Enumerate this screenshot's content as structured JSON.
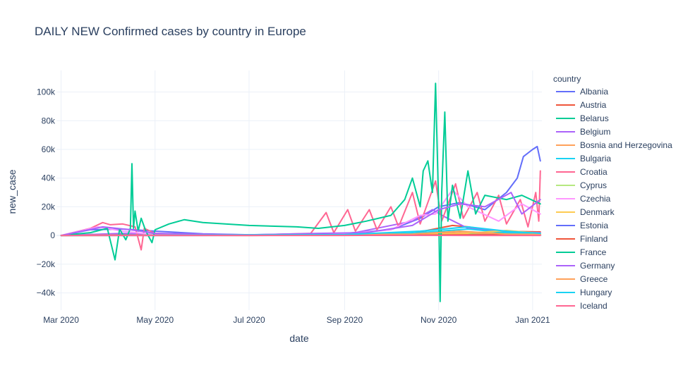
{
  "chart_data": {
    "type": "line",
    "title": "DAILY NEW Confirmed cases by country in Europe",
    "xlabel": "date",
    "ylabel": "new_case",
    "legend_title": "country",
    "legend_position": "right",
    "grid": true,
    "xlim": [
      "2020-02-27",
      "2021-01-07"
    ],
    "ylim": [
      -52000,
      115000
    ],
    "x_ticks": [
      {
        "date": "2020-03-01",
        "label": "Mar 2020"
      },
      {
        "date": "2020-05-01",
        "label": "May 2020"
      },
      {
        "date": "2020-07-01",
        "label": "Jul 2020"
      },
      {
        "date": "2020-09-01",
        "label": "Sep 2020"
      },
      {
        "date": "2020-11-01",
        "label": "Nov 2020"
      },
      {
        "date": "2021-01-01",
        "label": "Jan 2021"
      }
    ],
    "y_ticks": [
      {
        "value": -40000,
        "label": "−40k"
      },
      {
        "value": -20000,
        "label": "−20k"
      },
      {
        "value": 0,
        "label": "0"
      },
      {
        "value": 20000,
        "label": "20k"
      },
      {
        "value": 40000,
        "label": "40k"
      },
      {
        "value": 60000,
        "label": "60k"
      },
      {
        "value": 80000,
        "label": "80k"
      },
      {
        "value": 100000,
        "label": "100k"
      }
    ],
    "series": [
      {
        "name": "Albania",
        "color": "#636efa",
        "points": [
          [
            "2020-03-01",
            0
          ],
          [
            "2020-03-20",
            4000
          ],
          [
            "2020-04-10",
            4500
          ],
          [
            "2020-05-01",
            3000
          ],
          [
            "2020-06-01",
            1200
          ],
          [
            "2020-07-01",
            500
          ],
          [
            "2020-08-01",
            1000
          ],
          [
            "2020-09-01",
            1500
          ],
          [
            "2020-10-01",
            4000
          ],
          [
            "2020-10-20",
            12000
          ],
          [
            "2020-11-01",
            20000
          ],
          [
            "2020-11-15",
            23000
          ],
          [
            "2020-12-01",
            18000
          ],
          [
            "2020-12-15",
            30000
          ],
          [
            "2020-12-22",
            40000
          ],
          [
            "2020-12-26",
            55000
          ],
          [
            "2021-01-01",
            60000
          ],
          [
            "2021-01-04",
            62000
          ],
          [
            "2021-01-06",
            52000
          ]
        ]
      },
      {
        "name": "Austria",
        "color": "#ef553b",
        "points": [
          [
            "2020-03-01",
            0
          ],
          [
            "2020-03-25",
            800
          ],
          [
            "2020-05-01",
            100
          ],
          [
            "2020-07-01",
            100
          ],
          [
            "2020-09-01",
            400
          ],
          [
            "2020-10-15",
            1500
          ],
          [
            "2020-11-10",
            7000
          ],
          [
            "2020-11-20",
            6000
          ],
          [
            "2020-12-10",
            3000
          ],
          [
            "2021-01-06",
            2500
          ]
        ]
      },
      {
        "name": "Belarus",
        "color": "#00cc96",
        "points": [
          [
            "2020-03-01",
            0
          ],
          [
            "2020-04-01",
            1000
          ],
          [
            "2020-05-01",
            900
          ],
          [
            "2020-06-01",
            800
          ],
          [
            "2020-07-01",
            300
          ],
          [
            "2020-09-01",
            300
          ],
          [
            "2020-10-15",
            900
          ],
          [
            "2020-11-15",
            1500
          ],
          [
            "2020-12-15",
            1800
          ],
          [
            "2021-01-06",
            1700
          ]
        ]
      },
      {
        "name": "Belgium",
        "color": "#ab63fa",
        "points": [
          [
            "2020-03-01",
            0
          ],
          [
            "2020-04-10",
            1500
          ],
          [
            "2020-05-01",
            600
          ],
          [
            "2020-07-01",
            200
          ],
          [
            "2020-09-01",
            500
          ],
          [
            "2020-10-15",
            10000
          ],
          [
            "2020-10-28",
            18000
          ],
          [
            "2020-11-05",
            13000
          ],
          [
            "2020-11-20",
            5000
          ],
          [
            "2020-12-15",
            2500
          ],
          [
            "2021-01-06",
            2000
          ]
        ]
      },
      {
        "name": "Bosnia and Herzegovina",
        "color": "#ffa15a",
        "points": [
          [
            "2020-03-01",
            0
          ],
          [
            "2020-05-01",
            50
          ],
          [
            "2020-07-01",
            200
          ],
          [
            "2020-09-01",
            300
          ],
          [
            "2020-10-20",
            1000
          ],
          [
            "2020-11-15",
            2000
          ],
          [
            "2020-12-15",
            1000
          ],
          [
            "2021-01-06",
            600
          ]
        ]
      },
      {
        "name": "Bulgaria",
        "color": "#19d3f3",
        "points": [
          [
            "2020-03-01",
            0
          ],
          [
            "2020-05-01",
            100
          ],
          [
            "2020-07-01",
            150
          ],
          [
            "2020-09-01",
            200
          ],
          [
            "2020-10-20",
            2000
          ],
          [
            "2020-11-20",
            4500
          ],
          [
            "2020-12-15",
            2000
          ],
          [
            "2021-01-06",
            800
          ]
        ]
      },
      {
        "name": "Croatia",
        "color": "#ff6692",
        "points": [
          [
            "2020-03-01",
            0
          ],
          [
            "2020-03-20",
            5000
          ],
          [
            "2020-03-28",
            9000
          ],
          [
            "2020-04-02",
            7500
          ],
          [
            "2020-04-10",
            8000
          ],
          [
            "2020-04-18",
            6000
          ],
          [
            "2020-04-22",
            -10000
          ],
          [
            "2020-04-24",
            5000
          ],
          [
            "2020-05-01",
            1500
          ],
          [
            "2020-06-01",
            500
          ],
          [
            "2020-07-01",
            300
          ],
          [
            "2020-08-10",
            1500
          ],
          [
            "2020-08-20",
            16000
          ],
          [
            "2020-08-25",
            2000
          ],
          [
            "2020-09-03",
            18000
          ],
          [
            "2020-09-08",
            3000
          ],
          [
            "2020-09-17",
            18000
          ],
          [
            "2020-09-22",
            4000
          ],
          [
            "2020-10-01",
            20000
          ],
          [
            "2020-10-06",
            6000
          ],
          [
            "2020-10-15",
            30000
          ],
          [
            "2020-10-20",
            8000
          ],
          [
            "2020-10-30",
            38000
          ],
          [
            "2020-11-03",
            10000
          ],
          [
            "2020-11-12",
            36000
          ],
          [
            "2020-11-17",
            12000
          ],
          [
            "2020-11-26",
            30000
          ],
          [
            "2020-12-01",
            10000
          ],
          [
            "2020-12-10",
            28000
          ],
          [
            "2020-12-15",
            8000
          ],
          [
            "2020-12-24",
            25000
          ],
          [
            "2020-12-29",
            6000
          ],
          [
            "2021-01-03",
            30000
          ],
          [
            "2021-01-05",
            10000
          ],
          [
            "2021-01-06",
            45000
          ]
        ]
      },
      {
        "name": "Cyprus",
        "color": "#b6e880",
        "points": [
          [
            "2020-03-01",
            0
          ],
          [
            "2020-05-01",
            20
          ],
          [
            "2020-09-01",
            50
          ],
          [
            "2020-11-01",
            300
          ],
          [
            "2020-12-15",
            700
          ],
          [
            "2021-01-06",
            900
          ]
        ]
      },
      {
        "name": "Czechia",
        "color": "#ff97ff",
        "points": [
          [
            "2020-03-01",
            0
          ],
          [
            "2020-03-25",
            6000
          ],
          [
            "2020-04-10",
            3000
          ],
          [
            "2020-05-01",
            400
          ],
          [
            "2020-07-01",
            200
          ],
          [
            "2020-09-01",
            1000
          ],
          [
            "2020-10-01",
            4000
          ],
          [
            "2020-10-20",
            14000
          ],
          [
            "2020-10-30",
            15000
          ],
          [
            "2020-11-10",
            32000
          ],
          [
            "2020-11-20",
            20000
          ],
          [
            "2020-12-10",
            10000
          ],
          [
            "2020-12-25",
            22000
          ],
          [
            "2021-01-06",
            15000
          ]
        ]
      },
      {
        "name": "Denmark",
        "color": "#fecb52",
        "points": [
          [
            "2020-03-01",
            0
          ],
          [
            "2020-04-01",
            300
          ],
          [
            "2020-05-01",
            100
          ],
          [
            "2020-07-01",
            50
          ],
          [
            "2020-09-01",
            200
          ],
          [
            "2020-10-15",
            800
          ],
          [
            "2020-11-15",
            1200
          ],
          [
            "2020-12-15",
            3500
          ],
          [
            "2021-01-06",
            1500
          ]
        ]
      },
      {
        "name": "Estonia",
        "color": "#636efa",
        "points": [
          [
            "2020-03-01",
            0
          ],
          [
            "2020-05-01",
            20
          ],
          [
            "2020-09-01",
            50
          ],
          [
            "2020-11-01",
            200
          ],
          [
            "2020-12-15",
            600
          ],
          [
            "2021-01-06",
            500
          ]
        ]
      },
      {
        "name": "Finland",
        "color": "#ef553b",
        "points": [
          [
            "2020-03-01",
            0
          ],
          [
            "2020-04-15",
            200
          ],
          [
            "2020-07-01",
            20
          ],
          [
            "2020-10-01",
            200
          ],
          [
            "2020-11-20",
            500
          ],
          [
            "2020-12-15",
            500
          ],
          [
            "2021-01-06",
            300
          ]
        ]
      },
      {
        "name": "France",
        "color": "#00cc96",
        "points": [
          [
            "2020-03-01",
            0
          ],
          [
            "2020-03-20",
            2000
          ],
          [
            "2020-03-31",
            5000
          ],
          [
            "2020-04-05",
            -17000
          ],
          [
            "2020-04-08",
            4500
          ],
          [
            "2020-04-12",
            -3000
          ],
          [
            "2020-04-15",
            5000
          ],
          [
            "2020-04-16",
            50000
          ],
          [
            "2020-04-17",
            5000
          ],
          [
            "2020-04-18",
            17000
          ],
          [
            "2020-04-20",
            3000
          ],
          [
            "2020-04-22",
            12000
          ],
          [
            "2020-04-25",
            3000
          ],
          [
            "2020-04-29",
            -5000
          ],
          [
            "2020-05-01",
            4000
          ],
          [
            "2020-05-10",
            8000
          ],
          [
            "2020-05-20",
            11000
          ],
          [
            "2020-06-01",
            9000
          ],
          [
            "2020-07-01",
            7000
          ],
          [
            "2020-08-01",
            6000
          ],
          [
            "2020-08-15",
            5000
          ],
          [
            "2020-09-01",
            7000
          ],
          [
            "2020-09-15",
            10000
          ],
          [
            "2020-10-01",
            14000
          ],
          [
            "2020-10-10",
            25000
          ],
          [
            "2020-10-15",
            40000
          ],
          [
            "2020-10-20",
            20000
          ],
          [
            "2020-10-22",
            45000
          ],
          [
            "2020-10-25",
            52000
          ],
          [
            "2020-10-28",
            30000
          ],
          [
            "2020-10-30",
            106000
          ],
          [
            "2020-11-01",
            20000
          ],
          [
            "2020-11-02",
            -46000
          ],
          [
            "2020-11-03",
            30000
          ],
          [
            "2020-11-05",
            86000
          ],
          [
            "2020-11-07",
            10000
          ],
          [
            "2020-11-10",
            35000
          ],
          [
            "2020-11-15",
            12000
          ],
          [
            "2020-11-20",
            45000
          ],
          [
            "2020-11-25",
            15000
          ],
          [
            "2020-12-01",
            28000
          ],
          [
            "2020-12-15",
            25000
          ],
          [
            "2020-12-25",
            28000
          ],
          [
            "2021-01-06",
            22000
          ]
        ]
      },
      {
        "name": "Germany",
        "color": "#ab63fa",
        "points": [
          [
            "2020-03-01",
            0
          ],
          [
            "2020-03-28",
            6000
          ],
          [
            "2020-04-15",
            4000
          ],
          [
            "2020-05-01",
            1500
          ],
          [
            "2020-07-01",
            400
          ],
          [
            "2020-08-15",
            1500
          ],
          [
            "2020-09-15",
            2000
          ],
          [
            "2020-10-15",
            7000
          ],
          [
            "2020-11-01",
            18000
          ],
          [
            "2020-11-15",
            22000
          ],
          [
            "2020-12-01",
            20000
          ],
          [
            "2020-12-18",
            30000
          ],
          [
            "2020-12-25",
            15000
          ],
          [
            "2021-01-06",
            25000
          ]
        ]
      },
      {
        "name": "Greece",
        "color": "#ffa15a",
        "points": [
          [
            "2020-03-01",
            0
          ],
          [
            "2020-05-01",
            50
          ],
          [
            "2020-08-15",
            300
          ],
          [
            "2020-10-15",
            1000
          ],
          [
            "2020-11-15",
            3000
          ],
          [
            "2020-12-15",
            1000
          ],
          [
            "2021-01-06",
            700
          ]
        ]
      },
      {
        "name": "Hungary",
        "color": "#19d3f3",
        "points": [
          [
            "2020-03-01",
            0
          ],
          [
            "2020-05-01",
            100
          ],
          [
            "2020-09-01",
            600
          ],
          [
            "2020-10-20",
            3000
          ],
          [
            "2020-11-20",
            6000
          ],
          [
            "2020-12-15",
            3000
          ],
          [
            "2021-01-06",
            1500
          ]
        ]
      },
      {
        "name": "Iceland",
        "color": "#ff6692",
        "points": [
          [
            "2020-03-01",
            0
          ],
          [
            "2020-03-25",
            100
          ],
          [
            "2020-05-01",
            5
          ],
          [
            "2020-09-01",
            20
          ],
          [
            "2020-10-10",
            90
          ],
          [
            "2020-12-01",
            20
          ],
          [
            "2021-01-06",
            10
          ]
        ]
      }
    ]
  }
}
